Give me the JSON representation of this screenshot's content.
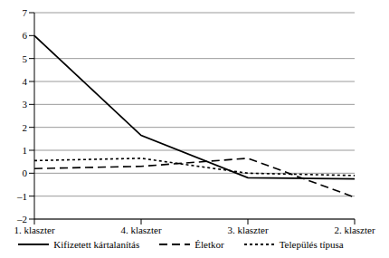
{
  "chart_data": {
    "type": "line",
    "categories": [
      "1. klaszter",
      "4. klaszter",
      "3. klaszter",
      "2. klaszter"
    ],
    "series": [
      {
        "name": "Kifizetett kártalanítás",
        "color": "#000000",
        "line_style": "solid",
        "values": [
          6,
          1.65,
          -0.2,
          -0.25
        ]
      },
      {
        "name": "Életkor",
        "color": "#000000",
        "line_style": "dashed",
        "values": [
          0.2,
          0.3,
          0.65,
          -1.05
        ]
      },
      {
        "name": "Település típusa",
        "color": "#000000",
        "line_style": "dotted",
        "values": [
          0.55,
          0.65,
          0.0,
          -0.1
        ]
      }
    ],
    "ylim": [
      -2,
      7
    ],
    "yticks": [
      -2,
      -1,
      0,
      1,
      2,
      3,
      4,
      5,
      6,
      7
    ],
    "grid": true,
    "legend": "bottom"
  }
}
